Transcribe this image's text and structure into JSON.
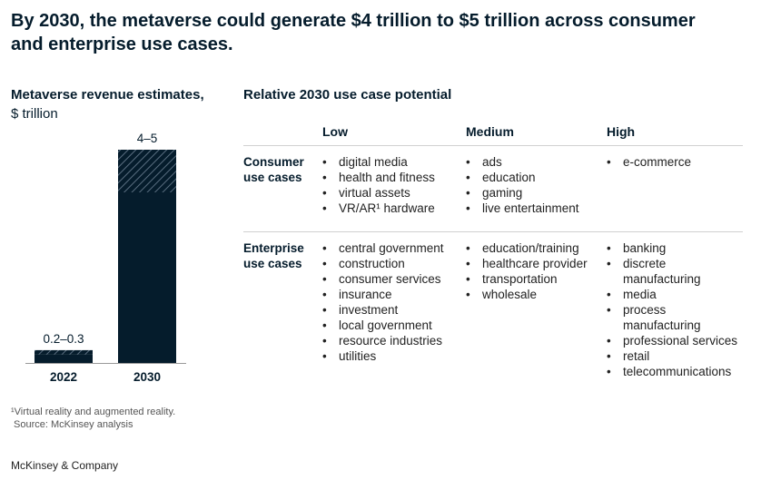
{
  "title": "By 2030, the metaverse could generate $4 trillion to $5 trillion across consumer and enterprise use cases.",
  "chart_data": {
    "type": "range-bar",
    "title": "Metaverse revenue estimates,",
    "subtitle": "$ trillion",
    "categories": [
      "2022",
      "2030"
    ],
    "low": [
      0.2,
      4
    ],
    "high": [
      0.3,
      5
    ],
    "value_labels": [
      "0.2–0.3",
      "4–5"
    ],
    "color": "#051c2c"
  },
  "table": {
    "title": "Relative 2030 use case potential",
    "columns": [
      "Low",
      "Medium",
      "High"
    ],
    "rows": [
      {
        "label": "Consumer use cases",
        "cells": [
          [
            "digital media",
            "health and fitness",
            "virtual assets",
            "VR/AR¹ hardware"
          ],
          [
            "ads",
            "education",
            "gaming",
            "live entertainment"
          ],
          [
            "e-commerce"
          ]
        ]
      },
      {
        "label": "Enterprise use cases",
        "cells": [
          [
            "central government",
            "construction",
            "consumer services",
            "insurance",
            "investment",
            "local government",
            "resource industries",
            "utilities"
          ],
          [
            "education/training",
            "healthcare provider",
            "transportation",
            "wholesale"
          ],
          [
            "banking",
            "discrete manufacturing",
            "media",
            "process manufacturing",
            "professional services",
            "retail",
            "telecommunications"
          ]
        ]
      }
    ]
  },
  "footnote": "¹Virtual reality and augmented reality.",
  "source": "Source: McKinsey analysis",
  "footer": "McKinsey & Company"
}
